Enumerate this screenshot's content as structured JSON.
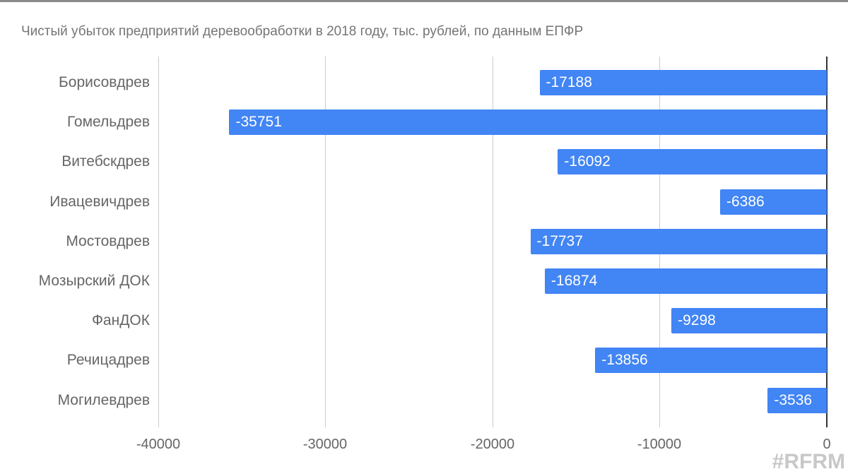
{
  "chart_data": {
    "type": "bar",
    "orientation": "horizontal",
    "title": "Чистый убыток предприятий деревообработки в 2018 году, тыс. рублей, по данным ЕПФР",
    "xlabel": "",
    "ylabel": "",
    "categories": [
      "Борисовдрев",
      "Гомельдрев",
      "Витебскдрев",
      "Ивацевичдрев",
      "Мостовдрев",
      "Мозырский ДОК",
      "ФанДОК",
      "Речицадрев",
      "Могилевдрев"
    ],
    "values": [
      -17188,
      -35751,
      -16092,
      -6386,
      -17737,
      -16874,
      -9298,
      -13856,
      -3536
    ],
    "value_labels": [
      "-17188",
      "-35751",
      "-16092",
      "-6386",
      "-17737",
      "-16874",
      "-9298",
      "-13856",
      "-3536"
    ],
    "xlim": [
      -40000,
      0
    ],
    "x_ticks": [
      "-40000",
      "-30000",
      "-20000",
      "-10000",
      "0"
    ],
    "grid": true,
    "legend": "none",
    "bar_color": "#4285f4"
  },
  "watermark": "#RFRM"
}
